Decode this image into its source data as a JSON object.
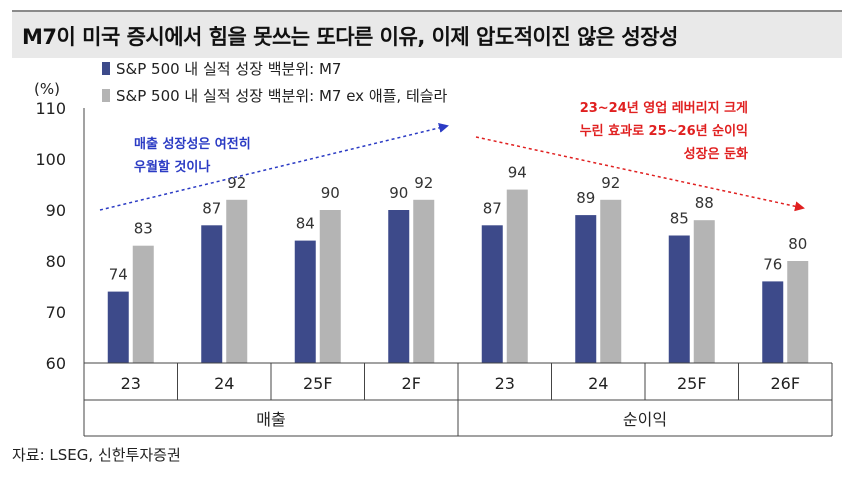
{
  "title": "M7이 미국 증시에서 힘을 못쓰는 또다른 이유, 이제 압도적이진 않은 성장성",
  "source": "자료: LSEG, 신한투자증권",
  "colors": {
    "series_m7": "#3d4a8a",
    "series_ex": "#b4b4b4",
    "annotation_blue": "#2b3bc4",
    "annotation_red": "#e02020"
  },
  "chart_data": {
    "type": "bar",
    "ylabel": "(%)",
    "ylim": [
      60,
      110
    ],
    "yticks": [
      "60",
      "70",
      "80",
      "90",
      "100",
      "110"
    ],
    "categories": [
      "23",
      "24",
      "25F",
      "2F",
      "23",
      "24",
      "25F",
      "26F"
    ],
    "groups": [
      {
        "label": "매출",
        "span": [
          0,
          3
        ]
      },
      {
        "label": "순이익",
        "span": [
          4,
          7
        ]
      }
    ],
    "series": [
      {
        "name": "S&P 500 내 실적 성장 백분위: M7",
        "values": [
          74,
          87,
          84,
          90,
          87,
          89,
          85,
          76
        ]
      },
      {
        "name": "S&P 500 내 실적 성장 백분위: M7 ex 애플, 테슬라",
        "values": [
          83,
          92,
          90,
          92,
          94,
          92,
          88,
          80
        ]
      }
    ],
    "legend": "top-left",
    "grid": false,
    "annotations": [
      {
        "lines": [
          "매출 성장성은 여전히",
          "우월할 것이나"
        ],
        "color": "blue"
      },
      {
        "lines": [
          "23~24년 영업 레버리지 크게",
          "누린 효과로 25~26년 순이익",
          "성장은 둔화"
        ],
        "color": "red"
      }
    ]
  }
}
